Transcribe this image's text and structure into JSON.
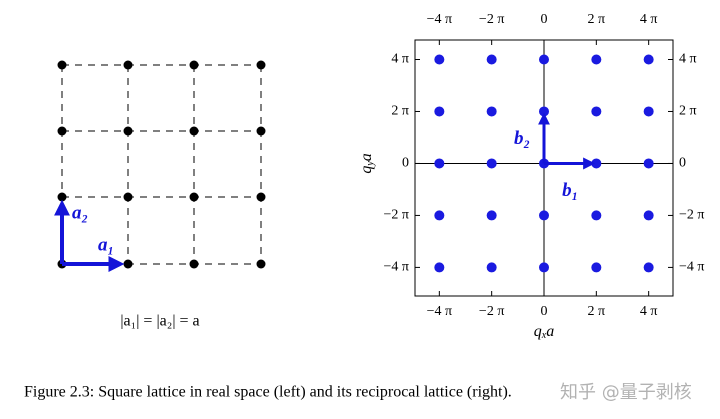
{
  "left_panel": {
    "vector_1": "a₁",
    "vector_2": "a₂",
    "equation": "|a₁| = |a₂| = a"
  },
  "chart_data": {
    "type": "scatter",
    "x": [
      -4,
      -2,
      0,
      2,
      4,
      -4,
      -2,
      0,
      2,
      4,
      -4,
      -2,
      0,
      2,
      4,
      -4,
      -2,
      0,
      2,
      4,
      -4,
      -2,
      0,
      2,
      4
    ],
    "y": [
      4,
      4,
      4,
      4,
      4,
      2,
      2,
      2,
      2,
      2,
      0,
      0,
      0,
      0,
      0,
      -2,
      -2,
      -2,
      -2,
      -2,
      -4,
      -4,
      -4,
      -4,
      -4
    ],
    "color": "#1a1ae0",
    "xlim": [
      -4.93,
      4.93
    ],
    "ylim": [
      -5.1,
      4.75
    ],
    "xticks": [
      {
        "value": -4,
        "label": "−4 π"
      },
      {
        "value": -2,
        "label": "−2 π"
      },
      0,
      {
        "value": 2,
        "label": "2 π"
      },
      {
        "value": 4,
        "label": "4 π"
      }
    ],
    "yticks": [
      {
        "value": -4,
        "label": "−4 π"
      },
      {
        "value": -2,
        "label": "−2 π"
      },
      0,
      {
        "value": 2,
        "label": "2 π"
      },
      {
        "value": 4,
        "label": "4 π"
      }
    ],
    "xlabel": {
      "base": "q",
      "sub": "x",
      "tail": "a"
    },
    "ylabel": {
      "base": "q",
      "sub": "y",
      "tail": "a"
    },
    "annotations": [
      {
        "label": "b₁",
        "x": 2,
        "y": 0
      },
      {
        "label": "b₂",
        "x": 0,
        "y": 2
      }
    ]
  },
  "caption": "Figure 2.3: Square lattice in real space (left) and its reciprocal lattice (right).",
  "watermark": "知乎 @量子剥核"
}
